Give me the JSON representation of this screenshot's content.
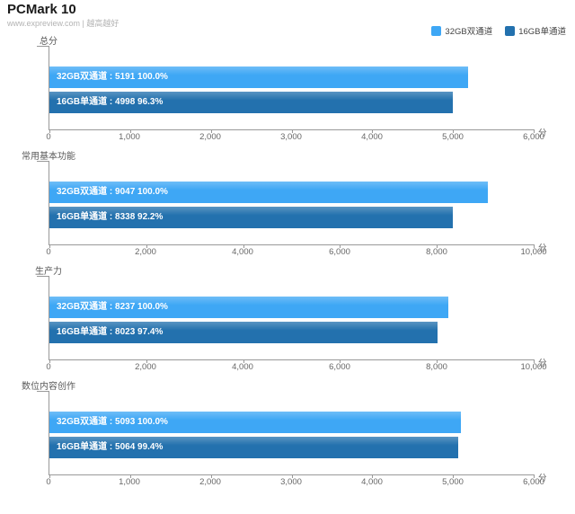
{
  "header": {
    "title": "PCMark 10",
    "subtitle": "www.expreview.com | 越高越好"
  },
  "legend": [
    {
      "label": "32GB双通道",
      "color": "#3ea7f5"
    },
    {
      "label": "16GB单通道",
      "color": "#2371ae"
    }
  ],
  "colors": {
    "bar_light": "#3ea7f5",
    "bar_dark": "#2371ae",
    "axis": "#999999",
    "tick_label": "#666666",
    "section_title": "#595959",
    "bar_text": "#ffffff"
  },
  "chart_data": [
    {
      "type": "bar",
      "title": "总分",
      "categories": [
        "32GB双通道",
        "16GB单通道"
      ],
      "values": [
        5191,
        4998
      ],
      "percents": [
        "100.0%",
        "96.3%"
      ],
      "labels": [
        "32GB双通道 : 5191  100.0%",
        "16GB单通道 : 4998  96.3%"
      ],
      "xlim": [
        0,
        6000
      ],
      "ticks": [
        "0",
        "1,000",
        "2,000",
        "3,000",
        "4,000",
        "5,000",
        "6,000"
      ],
      "unit": "分",
      "orientation": "horizontal",
      "grid": false
    },
    {
      "type": "bar",
      "title": "常用基本功能",
      "categories": [
        "32GB双通道",
        "16GB单通道"
      ],
      "values": [
        9047,
        8338
      ],
      "percents": [
        "100.0%",
        "92.2%"
      ],
      "labels": [
        "32GB双通道 : 9047  100.0%",
        "16GB单通道 : 8338  92.2%"
      ],
      "xlim": [
        0,
        10000
      ],
      "ticks": [
        "0",
        "2,000",
        "4,000",
        "6,000",
        "8,000",
        "10,000"
      ],
      "unit": "分",
      "orientation": "horizontal",
      "grid": false
    },
    {
      "type": "bar",
      "title": "生产力",
      "categories": [
        "32GB双通道",
        "16GB单通道"
      ],
      "values": [
        8237,
        8023
      ],
      "percents": [
        "100.0%",
        "97.4%"
      ],
      "labels": [
        "32GB双通道 : 8237  100.0%",
        "16GB单通道 : 8023  97.4%"
      ],
      "xlim": [
        0,
        10000
      ],
      "ticks": [
        "0",
        "2,000",
        "4,000",
        "6,000",
        "8,000",
        "10,000"
      ],
      "unit": "分",
      "orientation": "horizontal",
      "grid": false
    },
    {
      "type": "bar",
      "title": "数位内容创作",
      "categories": [
        "32GB双通道",
        "16GB单通道"
      ],
      "values": [
        5093,
        5064
      ],
      "percents": [
        "100.0%",
        "99.4%"
      ],
      "labels": [
        "32GB双通道 : 5093  100.0%",
        "16GB单通道 : 5064  99.4%"
      ],
      "xlim": [
        0,
        6000
      ],
      "ticks": [
        "0",
        "1,000",
        "2,000",
        "3,000",
        "4,000",
        "5,000",
        "6,000"
      ],
      "unit": "分",
      "orientation": "horizontal",
      "grid": false
    }
  ]
}
